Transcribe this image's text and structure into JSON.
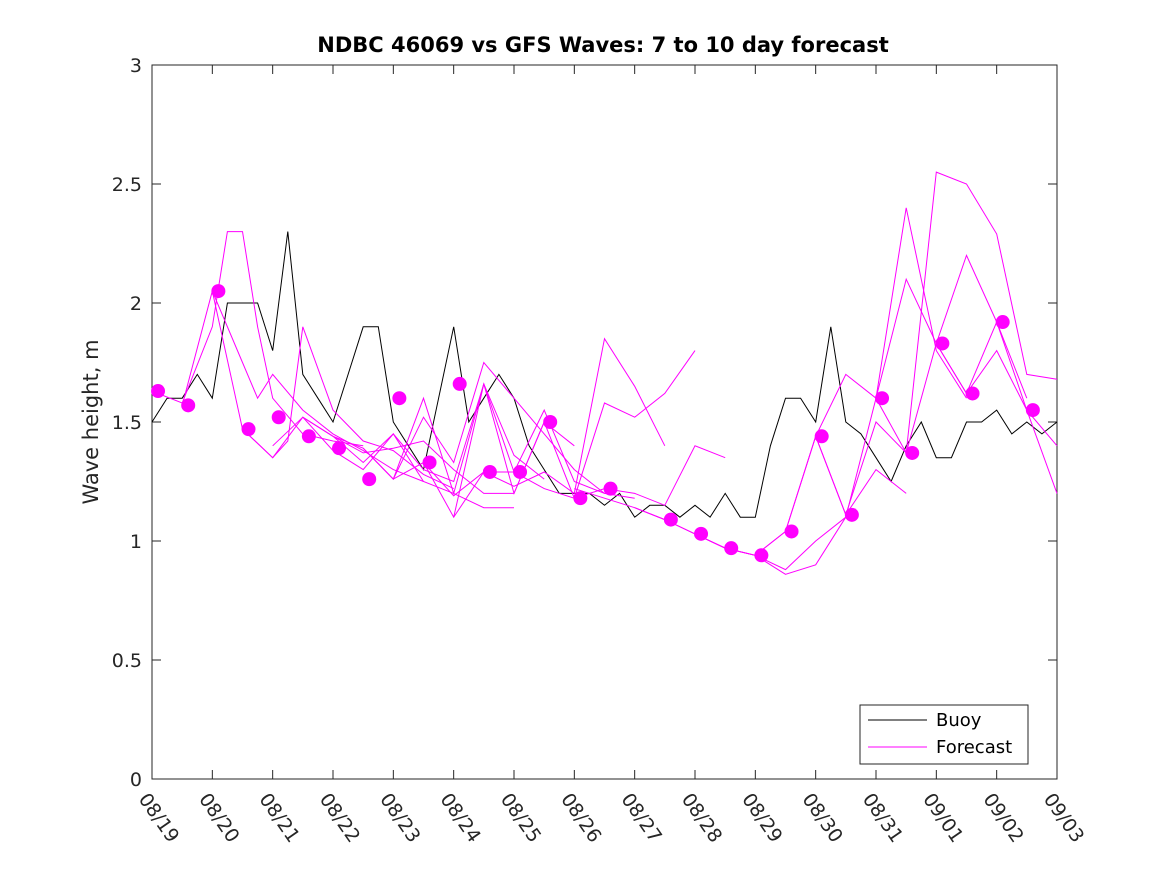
{
  "chart_data": {
    "type": "line",
    "title": "NDBC 46069 vs GFS Waves: 7 to 10 day forecast",
    "xlabel": "",
    "ylabel": "Wave height, m",
    "xlim": [
      0,
      15
    ],
    "ylim": [
      0,
      3
    ],
    "x_unit": "days since 08/19",
    "xticks": [
      0,
      1,
      2,
      3,
      4,
      5,
      6,
      7,
      8,
      9,
      10,
      11,
      12,
      13,
      14,
      15
    ],
    "xtick_labels": [
      "08/19",
      "08/20",
      "08/21",
      "08/22",
      "08/23",
      "08/24",
      "08/25",
      "08/26",
      "08/27",
      "08/28",
      "08/29",
      "08/30",
      "08/31",
      "09/01",
      "09/02",
      "09/03"
    ],
    "yticks": [
      0,
      0.5,
      1,
      1.5,
      2,
      2.5,
      3
    ],
    "ytick_labels": [
      "0",
      "0.5",
      "1",
      "1.5",
      "2",
      "2.5",
      "3"
    ],
    "legend": {
      "position": "bottom-right",
      "entries": [
        "Buoy",
        "Forecast"
      ]
    },
    "colors": {
      "buoy": "#000000",
      "forecast": "#ff00ff",
      "axes": "#262626"
    },
    "series": [
      {
        "name": "Buoy",
        "x": [
          0,
          0.25,
          0.5,
          0.75,
          1,
          1.25,
          1.5,
          1.75,
          2,
          2.25,
          2.5,
          2.75,
          3,
          3.25,
          3.5,
          3.75,
          4,
          4.25,
          4.5,
          4.75,
          5,
          5.25,
          5.5,
          5.75,
          6,
          6.25,
          6.5,
          6.75,
          7,
          7.25,
          7.5,
          7.75,
          8,
          8.25,
          8.5,
          8.75,
          9,
          9.25,
          9.5,
          9.75,
          10,
          10.25,
          10.5,
          10.75,
          11,
          11.25,
          11.5,
          11.75,
          12,
          12.25,
          12.5,
          12.75,
          13,
          13.25,
          13.5,
          13.75,
          14,
          14.25,
          14.5,
          14.75,
          15
        ],
        "y": [
          1.5,
          1.6,
          1.6,
          1.7,
          1.6,
          2.0,
          2.0,
          2.0,
          1.8,
          2.3,
          1.7,
          1.6,
          1.5,
          1.7,
          1.9,
          1.9,
          1.5,
          1.4,
          1.3,
          1.6,
          1.9,
          1.5,
          1.6,
          1.7,
          1.6,
          1.4,
          1.3,
          1.2,
          1.2,
          1.2,
          1.15,
          1.2,
          1.1,
          1.15,
          1.15,
          1.1,
          1.15,
          1.1,
          1.2,
          1.1,
          1.1,
          1.4,
          1.6,
          1.6,
          1.5,
          1.9,
          1.5,
          1.45,
          1.35,
          1.25,
          1.4,
          1.5,
          1.35,
          1.35,
          1.5,
          1.5,
          1.55,
          1.45,
          1.5,
          1.45,
          1.5
        ]
      },
      {
        "name": "Forecast",
        "runs": [
          {
            "x": [
              0,
              0.5,
              1,
              1.25,
              1.5,
              1.75,
              2,
              2.5,
              3,
              3.5
            ],
            "y": [
              1.63,
              1.58,
              1.9,
              2.3,
              2.3,
              1.9,
              1.6,
              1.45,
              1.42,
              1.4
            ]
          },
          {
            "x": [
              0.5,
              1,
              1.5,
              1.75,
              2,
              2.5,
              3,
              3.5,
              4,
              4.5
            ],
            "y": [
              1.57,
              2.05,
              1.75,
              1.6,
              1.7,
              1.55,
              1.45,
              1.38,
              1.3,
              1.25
            ]
          },
          {
            "x": [
              1,
              1.5,
              2,
              2.25,
              2.5,
              3,
              3.5,
              4,
              4.5,
              5
            ],
            "y": [
              2.05,
              1.47,
              1.35,
              1.42,
              1.9,
              1.55,
              1.42,
              1.38,
              1.28,
              1.22
            ]
          },
          {
            "x": [
              1.5,
              2,
              2.5,
              3,
              3.5,
              4,
              4.5,
              5,
              5.5,
              6
            ],
            "y": [
              1.47,
              1.35,
              1.52,
              1.38,
              1.3,
              1.45,
              1.25,
              1.2,
              1.14,
              1.14
            ]
          },
          {
            "x": [
              2,
              2.5,
              3,
              3.5,
              4,
              4.5,
              5,
              5.5,
              6,
              6.5
            ],
            "y": [
              1.4,
              1.52,
              1.44,
              1.33,
              1.45,
              1.3,
              1.25,
              1.66,
              1.36,
              1.26
            ]
          },
          {
            "x": [
              2.5,
              3,
              3.5,
              4,
              4.5,
              5,
              5.5,
              6,
              6.5,
              7
            ],
            "y": [
              1.52,
              1.44,
              1.37,
              1.39,
              1.42,
              1.3,
              1.2,
              1.2,
              1.5,
              1.4
            ]
          },
          {
            "x": [
              3,
              3.5,
              4,
              4.5,
              5,
              5.5,
              6,
              6.5,
              7,
              7.5
            ],
            "y": [
              1.44,
              1.39,
              1.26,
              1.52,
              1.33,
              1.75,
              1.6,
              1.45,
              1.3,
              1.2
            ]
          },
          {
            "x": [
              3.5,
              4,
              4.5,
              5,
              5.5,
              6,
              6.5,
              7,
              7.5,
              8
            ],
            "y": [
              1.39,
              1.26,
              1.6,
              1.2,
              1.66,
              1.29,
              1.55,
              1.25,
              1.2,
              1.18
            ]
          },
          {
            "x": [
              4,
              4.5,
              5,
              5.5,
              6,
              6.5,
              7,
              7.5,
              8,
              8.5
            ],
            "y": [
              1.26,
              1.33,
              1.19,
              1.29,
              1.23,
              1.29,
              1.2,
              1.85,
              1.65,
              1.4
            ]
          },
          {
            "x": [
              4.5,
              5,
              5.5,
              6,
              6.5,
              7,
              7.5,
              8,
              8.5,
              9
            ],
            "y": [
              1.33,
              1.1,
              1.29,
              1.29,
              1.22,
              1.18,
              1.58,
              1.52,
              1.62,
              1.8
            ]
          },
          {
            "x": [
              5,
              5.5,
              6,
              6.5,
              7,
              7.5,
              8,
              8.5,
              9,
              9.5
            ],
            "y": [
              1.1,
              1.66,
              1.2,
              1.5,
              1.18,
              1.22,
              1.2,
              1.15,
              1.4,
              1.35
            ]
          },
          {
            "x": [
              7,
              7.5,
              8,
              8.5,
              9,
              9.5,
              10,
              10.5,
              11,
              11.5
            ],
            "y": [
              1.22,
              1.18,
              1.14,
              1.09,
              1.03,
              0.97,
              0.94,
              0.88,
              1.0,
              1.1
            ]
          },
          {
            "x": [
              8,
              8.5,
              9,
              9.5,
              10,
              10.5,
              11,
              11.5,
              12,
              12.5
            ],
            "y": [
              1.14,
              1.09,
              1.03,
              0.97,
              0.94,
              1.04,
              1.44,
              1.11,
              1.3,
              1.2
            ]
          },
          {
            "x": [
              9,
              9.5,
              10,
              10.5,
              11,
              11.5,
              12,
              12.5,
              13,
              13.5
            ],
            "y": [
              1.03,
              0.97,
              0.94,
              1.04,
              1.44,
              1.7,
              1.6,
              2.4,
              1.8,
              1.6
            ]
          },
          {
            "x": [
              10,
              10.5,
              11,
              11.5,
              12,
              12.5,
              13,
              13.5,
              14,
              14.5
            ],
            "y": [
              0.94,
              0.86,
              0.9,
              1.1,
              1.6,
              2.1,
              1.83,
              2.2,
              1.92,
              1.6
            ]
          },
          {
            "x": [
              11,
              11.5,
              12,
              12.5,
              13,
              13.5,
              14,
              14.5,
              15
            ],
            "y": [
              1.44,
              1.11,
              1.5,
              1.37,
              2.55,
              2.5,
              2.29,
              1.7,
              1.68
            ]
          },
          {
            "x": [
              12,
              12.5,
              13,
              13.5,
              14,
              14.5,
              15
            ],
            "y": [
              1.6,
              1.37,
              1.83,
              1.62,
              1.92,
              1.55,
              1.4
            ]
          },
          {
            "x": [
              13,
              13.5,
              14,
              14.5,
              15
            ],
            "y": [
              1.83,
              1.62,
              1.8,
              1.55,
              1.2
            ]
          }
        ],
        "markers": {
          "x": [
            0.1,
            0.6,
            1.1,
            1.6,
            2.1,
            2.6,
            3.1,
            3.6,
            4.1,
            4.6,
            5.1,
            5.6,
            6.1,
            6.6,
            7.1,
            7.6,
            8.6,
            9.1,
            9.6,
            10.1,
            10.6,
            11.1,
            11.6,
            12.1,
            12.6,
            13.1,
            13.6,
            14.1,
            14.6
          ],
          "y": [
            1.63,
            1.57,
            2.05,
            1.47,
            1.52,
            1.44,
            1.39,
            1.26,
            1.6,
            1.33,
            1.66,
            1.29,
            1.29,
            1.5,
            1.18,
            1.22,
            1.09,
            1.03,
            0.97,
            0.94,
            1.04,
            1.44,
            1.11,
            1.6,
            1.37,
            1.83,
            1.62,
            1.92,
            1.55
          ]
        }
      }
    ]
  }
}
